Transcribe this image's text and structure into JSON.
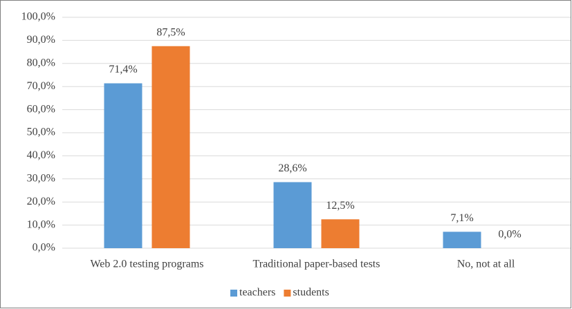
{
  "chart_data": {
    "type": "bar",
    "categories": [
      "Web 2.0 testing programs",
      "Traditional paper-based tests",
      "No, not at all"
    ],
    "series": [
      {
        "name": "teachers",
        "color": "#5b9bd5",
        "values": [
          71.4,
          28.6,
          7.1
        ],
        "value_labels": [
          "71,4%",
          "28,6%",
          "7,1%"
        ]
      },
      {
        "name": "students",
        "color": "#ed7d31",
        "values": [
          87.5,
          12.5,
          0.0
        ],
        "value_labels": [
          "87,5%",
          "12,5%",
          "0,0%"
        ]
      }
    ],
    "ylim": [
      0,
      100
    ],
    "yticks": [
      {
        "value": 0,
        "label": "0,0%"
      },
      {
        "value": 10,
        "label": "10,0%"
      },
      {
        "value": 20,
        "label": "20,0%"
      },
      {
        "value": 30,
        "label": "30,0%"
      },
      {
        "value": 40,
        "label": "40,0%"
      },
      {
        "value": 50,
        "label": "50,0%"
      },
      {
        "value": 60,
        "label": "60,0%"
      },
      {
        "value": 70,
        "label": "70,0%"
      },
      {
        "value": 80,
        "label": "80,0%"
      },
      {
        "value": 90,
        "label": "90,0%"
      },
      {
        "value": 100,
        "label": "100,0%"
      }
    ],
    "grid": true,
    "legend": "bottom"
  }
}
